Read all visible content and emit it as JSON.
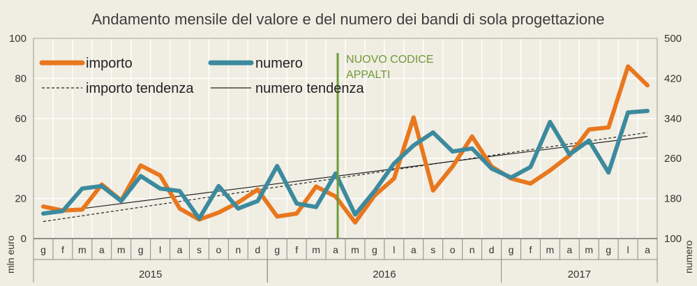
{
  "chart_data": {
    "type": "line",
    "title": "Andamento mensile del valore e del numero dei bandi di sola progettazione",
    "y_left": {
      "label": "mln euro",
      "ticks": [
        "0",
        "20",
        "40",
        "60",
        "80",
        "100"
      ],
      "lim": [
        0,
        100
      ]
    },
    "y_right": {
      "label": "numero",
      "ticks": [
        "100",
        "180",
        "260",
        "340",
        "420",
        "500"
      ],
      "lim": [
        100,
        500
      ]
    },
    "months": [
      "g",
      "f",
      "m",
      "a",
      "m",
      "g",
      "l",
      "a",
      "s",
      "o",
      "n",
      "d",
      "g",
      "f",
      "m",
      "a",
      "m",
      "g",
      "l",
      "a",
      "s",
      "o",
      "n",
      "d",
      "g",
      "f",
      "m",
      "a",
      "m",
      "g",
      "l",
      "a"
    ],
    "years": [
      {
        "label": "2015",
        "start": 0,
        "count": 12
      },
      {
        "label": "2016",
        "start": 12,
        "count": 12
      },
      {
        "label": "2017",
        "start": 24,
        "count": 8
      }
    ],
    "series": [
      {
        "name": "importo",
        "axis": "left",
        "color": "#e8771e",
        "values": [
          16,
          14,
          14.5,
          27,
          19,
          36.5,
          31.5,
          15,
          9.5,
          13,
          18,
          24.5,
          11,
          12.5,
          26,
          21,
          8,
          21.5,
          30,
          60.5,
          24,
          36,
          51,
          36,
          30,
          27.5,
          34,
          41.5,
          54.5,
          55.5,
          86,
          76.5
        ]
      },
      {
        "name": "numero",
        "axis": "right",
        "color": "#3c8a9e",
        "values": [
          150,
          155,
          200,
          205,
          175,
          225,
          200,
          195,
          140,
          205,
          160,
          175,
          245,
          170,
          163,
          230,
          148,
          195,
          250,
          286,
          312,
          274,
          280,
          240,
          222,
          243,
          333,
          268,
          296,
          232,
          352,
          355
        ]
      }
    ],
    "trends": [
      {
        "name": "importo tendenza",
        "axis": "left",
        "style": "dashed",
        "color": "#222222",
        "start": 8.5,
        "end": 53
      },
      {
        "name": "numero tendenza",
        "axis": "right",
        "style": "solid",
        "color": "#222222",
        "start": 150,
        "end": 304
      }
    ],
    "annotation": {
      "label_line1": "NUOVO CODICE",
      "label_line2": "APPALTI",
      "at_index": 15,
      "color": "#6e9a3b"
    },
    "grid": true
  }
}
